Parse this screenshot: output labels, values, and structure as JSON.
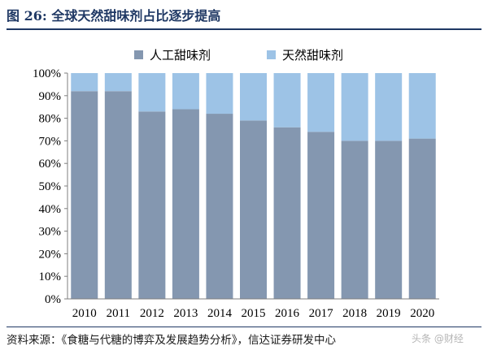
{
  "header": {
    "title": "图 26: 全球天然甜味剂占比逐步提高"
  },
  "footer": {
    "source": "资料来源：《食糖与代糖的博弈及发展趋势分析》，信达证券研发中心",
    "watermark": "头条 @财经"
  },
  "colors": {
    "title": "#1f3864",
    "artificial": "#8497b0",
    "natural": "#9dc3e6"
  },
  "chart_data": {
    "type": "bar",
    "stacked": true,
    "percent": true,
    "title": "",
    "xlabel": "",
    "ylabel": "",
    "categories": [
      "2010",
      "2011",
      "2012",
      "2013",
      "2014",
      "2015",
      "2016",
      "2017",
      "2018",
      "2019",
      "2020"
    ],
    "series": [
      {
        "name": "人工甜味剂",
        "color": "#8497b0",
        "values": [
          92,
          92,
          83,
          84,
          82,
          79,
          76,
          74,
          70,
          70,
          71
        ]
      },
      {
        "name": "天然甜味剂",
        "color": "#9dc3e6",
        "values": [
          8,
          8,
          17,
          16,
          18,
          21,
          24,
          26,
          30,
          30,
          29
        ]
      }
    ],
    "ylim": [
      0,
      100
    ],
    "yticks": [
      "0%",
      "10%",
      "20%",
      "30%",
      "40%",
      "50%",
      "60%",
      "70%",
      "80%",
      "90%",
      "100%"
    ],
    "grid": false,
    "legend": "top"
  }
}
